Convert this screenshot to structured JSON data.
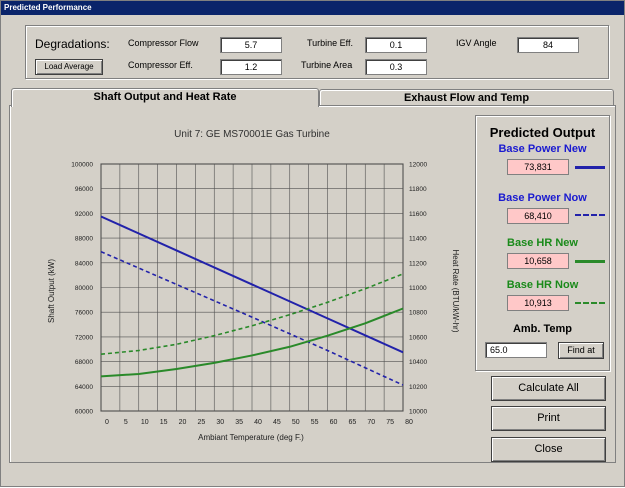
{
  "window": {
    "title": "Predicted Performance"
  },
  "degradations": {
    "label": "Degradations:",
    "load_average_label": "Load Average",
    "compressor_flow": {
      "label": "Compressor Flow",
      "value": "5.7"
    },
    "compressor_eff": {
      "label": "Compressor Eff.",
      "value": "1.2"
    },
    "turbine_eff": {
      "label": "Turbine Eff.",
      "value": "0.1"
    },
    "turbine_area": {
      "label": "Turbine Area",
      "value": "0.3"
    },
    "igv_angle": {
      "label": "IGV Angle",
      "value": "84"
    }
  },
  "tabs": [
    {
      "label": "Shaft Output and Heat Rate",
      "active": true
    },
    {
      "label": "Exhaust Flow and Temp",
      "active": false
    }
  ],
  "predicted_output": {
    "title": "Predicted Output",
    "base_power_new": {
      "label": "Base Power New",
      "value": "73,831"
    },
    "base_power_now": {
      "label": "Base Power Now",
      "value": "68,410"
    },
    "base_hr_new": {
      "label": "Base HR New",
      "value": "10,658"
    },
    "base_hr_now": {
      "label": "Base HR Now",
      "value": "10,913"
    },
    "amb_temp": {
      "label": "Amb. Temp",
      "value": "65.0",
      "button": "Find at"
    }
  },
  "buttons": {
    "calculate_all": "Calculate All",
    "print": "Print",
    "close": "Close"
  },
  "colors": {
    "power": "#2222aa",
    "hr": "#2a8a2a",
    "title_blue": "#1a1ad0",
    "title_green": "#1a8a1a",
    "field_pink": "#ffc8c8"
  },
  "chart_data": {
    "type": "line",
    "title": "Unit 7: GE MS70001E Gas Turbine",
    "xlabel": "Ambiant Temperature (deg F.)",
    "ylabel": "Shaft Output (kW)",
    "y2label": "Heat Rate (BTU/kW-hr)",
    "xlim": [
      0,
      80
    ],
    "ylim": [
      60000,
      100000
    ],
    "y2lim": [
      10000,
      12000
    ],
    "xticks": [
      0,
      5,
      10,
      15,
      20,
      25,
      30,
      35,
      40,
      45,
      50,
      55,
      60,
      65,
      70,
      75,
      80
    ],
    "yticks": [
      60000,
      64000,
      68000,
      72000,
      76000,
      80000,
      84000,
      88000,
      92000,
      96000,
      100000
    ],
    "y2ticks": [
      10000,
      10200,
      10400,
      10600,
      10800,
      11000,
      11200,
      11400,
      11600,
      11800,
      12000
    ],
    "grid": true,
    "series": [
      {
        "key": "power_new",
        "axis": "left",
        "style": "solid",
        "color": "#2222aa",
        "x": [
          0,
          20,
          40,
          60,
          80
        ],
        "y": [
          91500,
          86000,
          80500,
          75000,
          69500
        ]
      },
      {
        "key": "power_now",
        "axis": "left",
        "style": "dashed",
        "color": "#2222aa",
        "x": [
          0,
          20,
          40,
          60,
          80
        ],
        "y": [
          85800,
          80500,
          75200,
          69800,
          64200
        ]
      },
      {
        "key": "hr_new",
        "axis": "right",
        "style": "solid",
        "color": "#2a8a2a",
        "x": [
          0,
          10,
          20,
          30,
          40,
          50,
          60,
          70,
          80
        ],
        "y": [
          10280,
          10300,
          10340,
          10390,
          10450,
          10520,
          10610,
          10710,
          10830
        ]
      },
      {
        "key": "hr_now",
        "axis": "right",
        "style": "dashed",
        "color": "#2a8a2a",
        "x": [
          0,
          10,
          20,
          30,
          40,
          50,
          60,
          70,
          80
        ],
        "y": [
          10460,
          10490,
          10540,
          10610,
          10690,
          10780,
          10880,
          10990,
          11110
        ]
      }
    ]
  }
}
